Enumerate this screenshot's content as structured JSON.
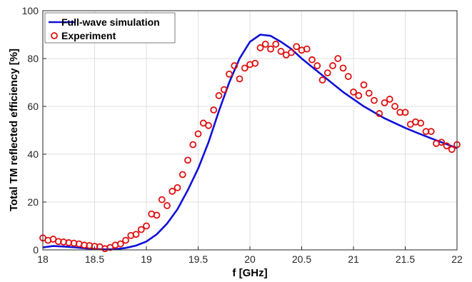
{
  "chart_data": {
    "type": "line",
    "xlabel": "f [GHz]",
    "ylabel": "Total TM reflected efficiency [%]",
    "xlim": [
      18,
      22
    ],
    "ylim": [
      0,
      100
    ],
    "xticks": [
      18,
      18.5,
      19,
      19.5,
      20,
      20.5,
      21,
      21.5,
      22
    ],
    "yticks": [
      0,
      20,
      40,
      60,
      80,
      100
    ],
    "xtick_labels": [
      "18",
      "18.5",
      "19",
      "19.5",
      "20",
      "20.5",
      "21",
      "21.5",
      "22"
    ],
    "ytick_labels": [
      "0",
      "20",
      "40",
      "60",
      "80",
      "100"
    ],
    "grid": true,
    "legend_position": "top-left",
    "series": [
      {
        "name": "Full-wave simulation",
        "style": "line",
        "color": "#1010d8",
        "x": [
          18,
          18.1,
          18.2,
          18.3,
          18.4,
          18.5,
          18.6,
          18.7,
          18.8,
          18.9,
          19.0,
          19.1,
          19.2,
          19.3,
          19.4,
          19.5,
          19.6,
          19.7,
          19.8,
          19.9,
          20.0,
          20.1,
          20.2,
          20.3,
          20.4,
          20.5,
          20.6,
          20.7,
          20.8,
          20.9,
          21.0,
          21.1,
          21.2,
          21.3,
          21.4,
          21.5,
          21.6,
          21.7,
          21.8,
          21.9,
          22.0
        ],
        "y": [
          1,
          1.6,
          1.4,
          1.1,
          0.7,
          0.4,
          0.2,
          0.3,
          0.8,
          1.8,
          3.5,
          6.5,
          11,
          17,
          25,
          34,
          45,
          58,
          70,
          80,
          87,
          90,
          89.5,
          87,
          84,
          80,
          76.5,
          73,
          69.5,
          66,
          63,
          60,
          57.5,
          55,
          53,
          51,
          49.2,
          47.5,
          45.8,
          44.2,
          42.5
        ]
      },
      {
        "name": "Experiment",
        "style": "markers",
        "color": "#e01010",
        "x": [
          18.0,
          18.05,
          18.1,
          18.15,
          18.2,
          18.25,
          18.3,
          18.35,
          18.4,
          18.45,
          18.5,
          18.55,
          18.6,
          18.65,
          18.7,
          18.75,
          18.8,
          18.85,
          18.9,
          18.95,
          19.0,
          19.05,
          19.1,
          19.15,
          19.2,
          19.25,
          19.3,
          19.35,
          19.4,
          19.45,
          19.5,
          19.55,
          19.6,
          19.65,
          19.7,
          19.75,
          19.8,
          19.85,
          19.9,
          19.95,
          20.0,
          20.05,
          20.1,
          20.15,
          20.2,
          20.25,
          20.3,
          20.35,
          20.4,
          20.45,
          20.5,
          20.55,
          20.6,
          20.65,
          20.7,
          20.75,
          20.8,
          20.85,
          20.9,
          20.95,
          21.0,
          21.05,
          21.1,
          21.15,
          21.2,
          21.25,
          21.3,
          21.35,
          21.4,
          21.45,
          21.5,
          21.55,
          21.6,
          21.65,
          21.7,
          21.75,
          21.8,
          21.85,
          21.9,
          21.95,
          22.0
        ],
        "y": [
          5,
          4,
          4.5,
          3.5,
          3.3,
          3,
          2.8,
          2.5,
          2,
          1.8,
          1.5,
          1.3,
          0.5,
          1,
          2,
          2.5,
          4,
          6,
          6.5,
          8.5,
          10,
          15,
          14.5,
          21,
          18.5,
          24.5,
          26,
          31.5,
          37.5,
          44,
          48.5,
          53,
          52,
          58.5,
          64.5,
          67,
          73.5,
          77,
          71.5,
          76,
          77.5,
          78,
          84.5,
          86,
          84,
          86,
          83,
          81.5,
          82.5,
          85,
          83.5,
          84,
          79.5,
          77,
          71,
          74,
          77,
          80,
          76,
          72.5,
          66,
          64.5,
          69,
          65.5,
          62.5,
          57,
          61.5,
          63,
          60,
          57.5,
          57.5,
          52.5,
          53.5,
          53,
          49.5,
          49.5,
          44.5,
          45,
          43.5,
          42,
          44
        ]
      }
    ]
  }
}
